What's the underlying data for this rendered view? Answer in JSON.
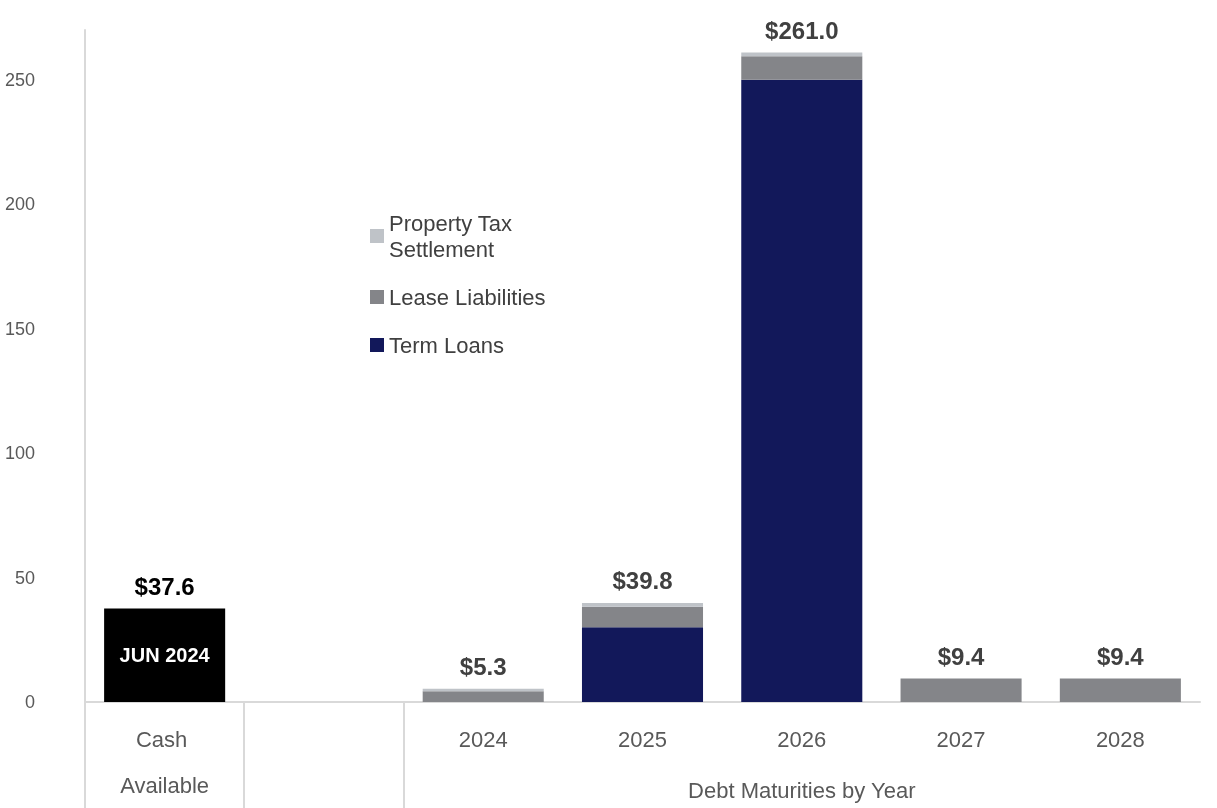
{
  "chart_data": {
    "type": "bar",
    "stacked": true,
    "categories": [
      "Cash Available",
      null,
      "2024",
      "2025",
      "2026",
      "2027",
      "2028"
    ],
    "xlabel": "Debt Maturities by Year",
    "series": [
      {
        "color": "#000000",
        "values": [
          37.6,
          null,
          null,
          null,
          null,
          null,
          null
        ],
        "value_labels": [
          "JUN 2024",
          null,
          null,
          null,
          null,
          null,
          null
        ]
      },
      {
        "name": "Term Loans",
        "color": "#12185a",
        "values": [
          null,
          null,
          null,
          30.0,
          250.0,
          null,
          null
        ]
      },
      {
        "name": "Lease Liabilities",
        "color": "#848589",
        "values": [
          null,
          null,
          4.3,
          8.3,
          9.5,
          9.4,
          9.4
        ]
      },
      {
        "name": "Property Tax Settlement",
        "color": "#bfc3c8",
        "values": [
          null,
          null,
          1.0,
          1.5,
          1.5,
          null,
          null
        ]
      }
    ],
    "totals": [
      "$37.6",
      null,
      "$5.3",
      "$39.8",
      "$261.0",
      "$9.4",
      "$9.4"
    ],
    "ylim": [
      0,
      270
    ],
    "yticks": [
      0,
      50,
      100,
      150,
      200,
      250
    ],
    "grid": false,
    "legend": "top left"
  }
}
